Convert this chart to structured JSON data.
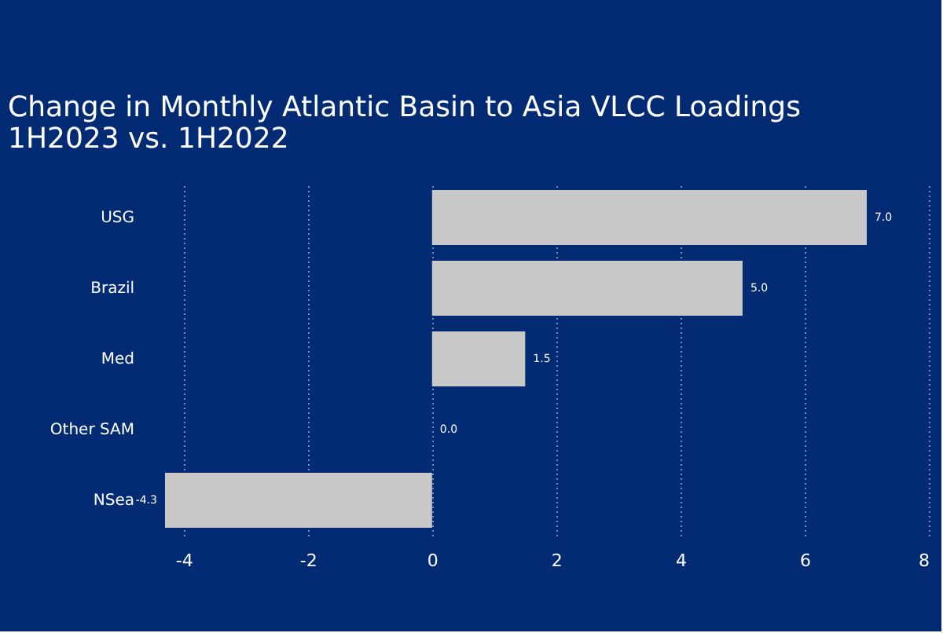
{
  "chart_data": {
    "type": "bar",
    "orientation": "horizontal",
    "title": "Change in Monthly Atlantic Basin to Asia VLCC Loadings\n1H2023 vs. 1H2022",
    "categories": [
      "USG",
      "Brazil",
      "Med",
      "Other SAM",
      "NSea"
    ],
    "values": [
      7.0,
      5.0,
      1.5,
      0.0,
      -4.3
    ],
    "color": "#c8c8c8",
    "data_labels": true,
    "value_labels": [
      "7.0",
      "5.0",
      "1.5",
      "0.0",
      "-4.3"
    ],
    "xlim": [
      -4.3,
      8
    ],
    "xticks": [
      -4,
      -2,
      0,
      2,
      4,
      6,
      8
    ],
    "grid": "x"
  }
}
